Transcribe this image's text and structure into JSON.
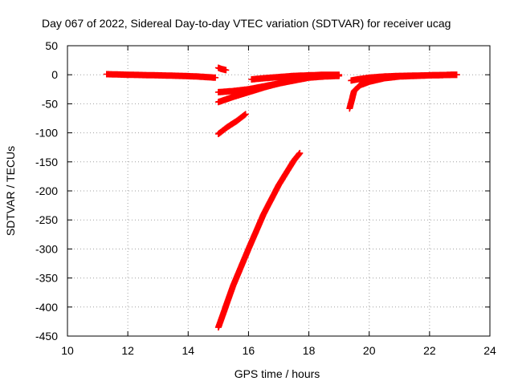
{
  "chart_data": {
    "type": "scatter",
    "title": "Day 067 of 2022, Sidereal Day-to-day VTEC variation (SDTVAR) for receiver ucag",
    "xlabel": "GPS time / hours",
    "ylabel": "SDTVAR / TECUs",
    "xlim": [
      10,
      24
    ],
    "ylim": [
      -450,
      50
    ],
    "xticks": [
      "10",
      "12",
      "14",
      "16",
      "18",
      "20",
      "22",
      "24"
    ],
    "yticks": [
      "50",
      "0",
      "-50",
      "-100",
      "-150",
      "-200",
      "-250",
      "-300",
      "-350",
      "-400",
      "-450"
    ],
    "grid": true,
    "marker": "plus",
    "colors": {
      "series": "#ff0000",
      "axis": "#000000",
      "grid": "#a0a0a0"
    },
    "series": [
      {
        "values": [
          [
            11.3,
            1
          ],
          [
            12.0,
            0
          ],
          [
            13.0,
            -1
          ],
          [
            13.8,
            -2
          ],
          [
            14.3,
            -3
          ],
          [
            14.9,
            -5
          ]
        ]
      },
      {
        "values": [
          [
            15.0,
            12
          ],
          [
            15.1,
            10
          ],
          [
            15.25,
            8
          ]
        ]
      },
      {
        "values": [
          [
            15.0,
            -30
          ],
          [
            15.5,
            -28
          ],
          [
            16.0,
            -25
          ],
          [
            16.5,
            -20
          ],
          [
            17.0,
            -15
          ],
          [
            17.5,
            -10
          ],
          [
            18.0,
            -5
          ],
          [
            18.5,
            -3
          ],
          [
            19.0,
            -2
          ]
        ]
      },
      {
        "values": [
          [
            15.0,
            -47
          ],
          [
            15.5,
            -38
          ],
          [
            16.0,
            -30
          ],
          [
            16.5,
            -22
          ],
          [
            17.0,
            -15
          ],
          [
            17.5,
            -9
          ],
          [
            18.0,
            -4
          ],
          [
            18.3,
            -2
          ]
        ]
      },
      {
        "values": [
          [
            16.1,
            -8
          ],
          [
            16.5,
            -6
          ],
          [
            17.0,
            -4
          ],
          [
            17.5,
            -2
          ],
          [
            18.0,
            -1
          ],
          [
            18.5,
            0
          ],
          [
            19.0,
            0
          ]
        ]
      },
      {
        "values": [
          [
            15.0,
            -102
          ],
          [
            15.3,
            -90
          ],
          [
            15.6,
            -80
          ],
          [
            15.9,
            -68
          ]
        ]
      },
      {
        "values": [
          [
            15.0,
            -435
          ],
          [
            15.5,
            -362
          ],
          [
            16.0,
            -300
          ],
          [
            16.5,
            -240
          ],
          [
            17.0,
            -190
          ],
          [
            17.5,
            -148
          ],
          [
            17.7,
            -135
          ]
        ]
      },
      {
        "values": [
          [
            19.35,
            -58
          ],
          [
            19.5,
            -28
          ],
          [
            19.7,
            -18
          ],
          [
            20.0,
            -12
          ],
          [
            20.5,
            -6
          ],
          [
            21.0,
            -3
          ],
          [
            22.0,
            -1
          ],
          [
            22.9,
            0
          ]
        ]
      },
      {
        "values": [
          [
            19.4,
            -10
          ],
          [
            19.6,
            -8
          ],
          [
            20.0,
            -5
          ],
          [
            20.5,
            -3
          ],
          [
            21.0,
            -2
          ],
          [
            22.0,
            -1
          ],
          [
            22.9,
            0
          ]
        ]
      }
    ]
  }
}
